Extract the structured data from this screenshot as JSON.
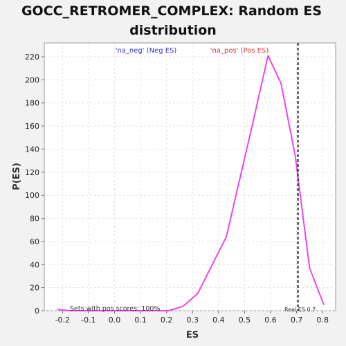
{
  "chart_data": {
    "type": "line",
    "title_line1": "GOCC_RETROMER_COMPLEX: Random ES",
    "title_line2": "distribution",
    "xlabel": "ES",
    "ylabel": "P(ES)",
    "xlim": [
      -0.27,
      0.85
    ],
    "ylim": [
      0,
      232
    ],
    "xticks": [
      -0.2,
      -0.1,
      0.0,
      0.1,
      0.2,
      0.3,
      0.4,
      0.5,
      0.6,
      0.7,
      0.8
    ],
    "xtick_labels": [
      "-0.2",
      "-0.1",
      "0.0",
      "0.1",
      "0.2",
      "0.3",
      "0.4",
      "0.5",
      "0.6",
      "0.7",
      "0.8"
    ],
    "yticks": [
      0,
      20,
      40,
      60,
      80,
      100,
      120,
      140,
      160,
      180,
      200,
      220
    ],
    "ytick_labels": [
      "0",
      "20",
      "40",
      "60",
      "80",
      "100",
      "120",
      "140",
      "160",
      "180",
      "200",
      "220"
    ],
    "grid": true,
    "series": [
      {
        "color": "#ee44ee",
        "x": [
          -0.22,
          -0.17,
          -0.12,
          -0.06,
          0.0,
          0.06,
          0.12,
          0.16,
          0.21,
          0.265,
          0.32,
          0.43,
          0.535,
          0.59,
          0.64,
          0.695,
          0.75,
          0.805
        ],
        "y": [
          1,
          0,
          0,
          0,
          0,
          0,
          0,
          0,
          0,
          4,
          15,
          64,
          166,
          221,
          197,
          134,
          37,
          5
        ]
      }
    ],
    "legend": {
      "neg_label": "'na_neg' (Neg ES)",
      "neg_color": "#3333cc",
      "pos_label": "'na_pos' (Pos ES)",
      "pos_color": "#dd3333"
    },
    "real_es": 0.7,
    "real_es_label": "Real ES 0.7",
    "annotation": "Sets with pos scores: 100%"
  }
}
